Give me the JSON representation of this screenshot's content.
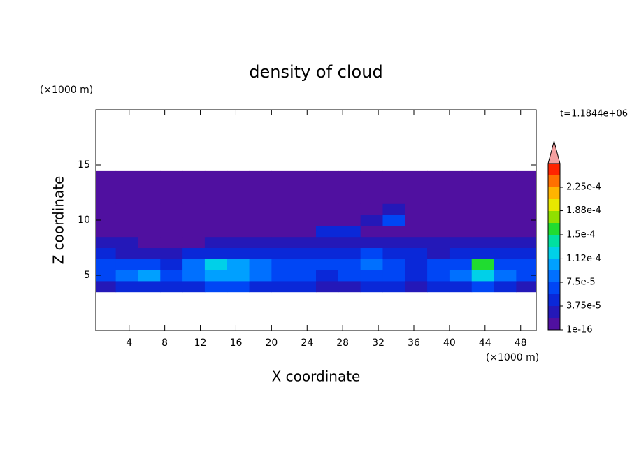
{
  "chart_data": {
    "type": "contour",
    "title": "density of cloud",
    "x_label": "X coordinate",
    "y_label": "Z coordinate",
    "x_unit": "(×1000 m)",
    "y_unit": "(×1000 m)",
    "time_label": "t=1.1844e+06",
    "xlim": [
      0.25,
      49.75
    ],
    "ylim": [
      0,
      20
    ],
    "xticks": [
      4,
      8,
      12,
      16,
      20,
      24,
      28,
      32,
      36,
      40,
      44,
      48
    ],
    "yticks": [
      5,
      10,
      15
    ],
    "x": [
      1.25,
      3.75,
      6.25,
      8.75,
      11.25,
      13.75,
      16.25,
      18.75,
      21.25,
      23.75,
      26.25,
      28.75,
      31.25,
      33.75,
      36.25,
      38.75,
      41.25,
      43.75,
      46.25,
      48.75
    ],
    "y": [
      4,
      5,
      6,
      7,
      8,
      9,
      10,
      11,
      12,
      13,
      14
    ],
    "z": [
      [
        3e-05,
        4e-05,
        5e-05,
        4e-05,
        4e-05,
        6e-05,
        6e-05,
        5e-05,
        4e-05,
        4e-05,
        3e-05,
        3e-05,
        4e-05,
        4e-05,
        3e-05,
        4e-05,
        5e-05,
        6e-05,
        4e-05,
        3e-05
      ],
      [
        6e-05,
        8e-05,
        9.5e-05,
        6e-05,
        8e-05,
        0.000105,
        0.00011,
        9e-05,
        7e-05,
        6e-05,
        5e-05,
        6e-05,
        7e-05,
        6e-05,
        5e-05,
        6e-05,
        8e-05,
        0.00013,
        8e-05,
        6e-05
      ],
      [
        6e-05,
        7e-05,
        6e-05,
        5e-05,
        9e-05,
        0.000115,
        0.00011,
        8e-05,
        7e-05,
        6e-05,
        6e-05,
        7e-05,
        8e-05,
        7e-05,
        5e-05,
        6e-05,
        7e-05,
        0.00015,
        7e-05,
        6e-05
      ],
      [
        4e-05,
        3e-05,
        2e-05,
        3e-05,
        4e-05,
        5e-05,
        4e-05,
        5e-05,
        4e-05,
        5e-05,
        5e-05,
        4e-05,
        6e-05,
        5e-05,
        4e-05,
        3e-05,
        4e-05,
        5e-05,
        4e-05,
        4e-05
      ],
      [
        2e-05,
        2e-05,
        1e-05,
        1e-05,
        1e-05,
        2e-05,
        2e-05,
        2e-05,
        2e-05,
        2e-05,
        3e-05,
        2e-05,
        2e-05,
        2e-05,
        2e-05,
        2e-05,
        2e-05,
        2e-05,
        2e-05,
        2e-05
      ],
      [
        1e-16,
        1e-16,
        1e-16,
        1e-16,
        1e-16,
        1e-16,
        1e-16,
        1e-16,
        1e-16,
        1e-16,
        5e-05,
        4e-05,
        1e-16,
        1e-16,
        1e-16,
        1e-16,
        1e-16,
        1e-16,
        1e-16,
        1e-16
      ],
      [
        1e-16,
        1e-16,
        1e-16,
        1e-16,
        1e-16,
        1e-16,
        1e-16,
        1e-16,
        1e-16,
        1e-16,
        1e-16,
        1e-16,
        2e-05,
        6e-05,
        1e-16,
        1e-16,
        1e-16,
        1e-16,
        1e-16,
        1e-16
      ],
      [
        1e-16,
        1e-16,
        1e-16,
        1e-16,
        1e-16,
        1e-16,
        1e-16,
        1e-16,
        1e-16,
        1e-16,
        1e-16,
        1e-16,
        1e-16,
        3e-05,
        1e-16,
        1e-16,
        1e-16,
        1e-16,
        1e-16,
        1e-16
      ],
      [
        1e-16,
        1e-16,
        1e-16,
        1e-16,
        1e-16,
        1e-16,
        1e-16,
        1e-16,
        1e-16,
        1e-16,
        1e-16,
        1e-16,
        1e-16,
        1e-16,
        1e-16,
        1e-16,
        1e-16,
        1e-16,
        1e-16,
        1e-16
      ],
      [
        1e-16,
        1e-16,
        1e-16,
        1e-16,
        1e-16,
        1e-16,
        1e-16,
        1e-16,
        1e-16,
        1e-16,
        1e-16,
        1e-16,
        1e-16,
        1e-16,
        1e-16,
        1e-16,
        1e-16,
        1e-16,
        1e-16,
        1e-16
      ],
      [
        1e-16,
        1e-16,
        1e-16,
        1e-16,
        1e-16,
        1e-16,
        1e-16,
        1e-16,
        1e-16,
        1e-16,
        1e-16,
        1e-16,
        1e-16,
        1e-16,
        1e-16,
        1e-16,
        1e-16,
        1e-16,
        1e-16,
        1e-16
      ]
    ],
    "colorbar": {
      "levels": [
        1e-16,
        1.875e-05,
        3.75e-05,
        5.625e-05,
        7.5e-05,
        9.375e-05,
        0.0001125,
        0.00013125,
        0.00015,
        0.00016875,
        0.0001875,
        0.00020625,
        0.000225,
        0.00024375
      ],
      "colors": [
        "#5010a0",
        "#2418b8",
        "#0a28d8",
        "#0046f5",
        "#0070ff",
        "#00a0ff",
        "#00d0e8",
        "#00e0a0",
        "#20dc30",
        "#90e000",
        "#e8e800",
        "#ffb400",
        "#ff7000",
        "#ff2400"
      ],
      "over_color": "#f4a0a0",
      "ticks": [
        {
          "value": 1e-16,
          "label": "1e-16"
        },
        {
          "value": 3.75e-05,
          "label": "3.75e-5"
        },
        {
          "value": 7.5e-05,
          "label": "7.5e-5"
        },
        {
          "value": 0.000112,
          "label": "1.12e-4"
        },
        {
          "value": 0.00015,
          "label": "1.5e-4"
        },
        {
          "value": 0.000188,
          "label": "1.88e-4"
        },
        {
          "value": 0.000225,
          "label": "2.25e-4"
        }
      ]
    }
  }
}
